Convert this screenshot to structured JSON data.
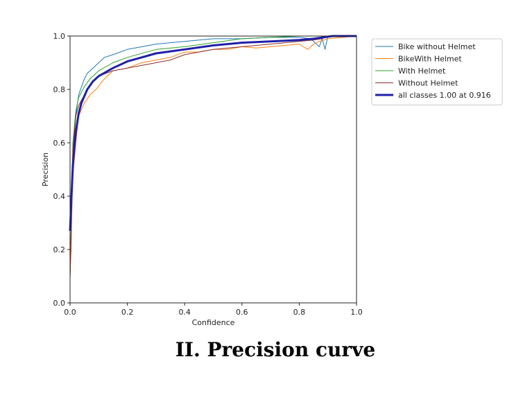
{
  "caption": "II. Precision curve",
  "chart_data": {
    "type": "line",
    "xlabel": "Confidence",
    "ylabel": "Precision",
    "xlim": [
      0.0,
      1.0
    ],
    "ylim": [
      0.0,
      1.0
    ],
    "xticks": [
      "0.0",
      "0.2",
      "0.4",
      "0.6",
      "0.8",
      "1.0"
    ],
    "yticks": [
      "0.0",
      "0.2",
      "0.4",
      "0.6",
      "0.8",
      "1.0"
    ],
    "grid": false,
    "legend_position": "outside-top-right",
    "series": [
      {
        "name": "Bike without Helmet",
        "color": "#1f77b4",
        "width": 1,
        "x": [
          0.0,
          0.005,
          0.01,
          0.02,
          0.03,
          0.05,
          0.06,
          0.08,
          0.1,
          0.12,
          0.15,
          0.2,
          0.25,
          0.3,
          0.4,
          0.5,
          0.6,
          0.7,
          0.8,
          0.84,
          0.86,
          0.87,
          0.88,
          0.89,
          0.9,
          0.92,
          1.0
        ],
        "y": [
          0.1,
          0.3,
          0.55,
          0.7,
          0.78,
          0.84,
          0.86,
          0.88,
          0.9,
          0.92,
          0.93,
          0.95,
          0.96,
          0.97,
          0.98,
          0.99,
          0.99,
          0.995,
          0.995,
          0.99,
          0.97,
          0.96,
          0.99,
          0.95,
          1.0,
          1.0,
          1.0
        ]
      },
      {
        "name": "BikeWith Helmet",
        "color": "#ff7f0e",
        "width": 1,
        "x": [
          0.0,
          0.004,
          0.008,
          0.02,
          0.03,
          0.05,
          0.07,
          0.09,
          0.12,
          0.15,
          0.2,
          0.25,
          0.3,
          0.35,
          0.4,
          0.45,
          0.5,
          0.55,
          0.6,
          0.65,
          0.7,
          0.75,
          0.8,
          0.83,
          0.85,
          0.87,
          0.9,
          1.0
        ],
        "y": [
          0.12,
          0.2,
          0.45,
          0.6,
          0.7,
          0.75,
          0.78,
          0.8,
          0.84,
          0.87,
          0.88,
          0.9,
          0.91,
          0.92,
          0.94,
          0.94,
          0.95,
          0.95,
          0.96,
          0.955,
          0.96,
          0.965,
          0.97,
          0.95,
          0.97,
          0.98,
          0.99,
          1.0
        ]
      },
      {
        "name": "With Helmet",
        "color": "#2ca02c",
        "width": 1,
        "x": [
          0.0,
          0.005,
          0.01,
          0.02,
          0.03,
          0.05,
          0.07,
          0.1,
          0.15,
          0.2,
          0.3,
          0.4,
          0.5,
          0.6,
          0.7,
          0.8,
          0.85,
          0.9,
          1.0
        ],
        "y": [
          0.1,
          0.35,
          0.6,
          0.72,
          0.77,
          0.81,
          0.84,
          0.87,
          0.9,
          0.92,
          0.95,
          0.96,
          0.975,
          0.99,
          0.995,
          1.0,
          1.0,
          1.0,
          1.0
        ]
      },
      {
        "name": "Without Helmet",
        "color": "#8c2d2d",
        "width": 1,
        "x": [
          0.0,
          0.005,
          0.01,
          0.02,
          0.03,
          0.05,
          0.07,
          0.1,
          0.15,
          0.2,
          0.25,
          0.3,
          0.35,
          0.4,
          0.5,
          0.6,
          0.7,
          0.8,
          0.85,
          0.88,
          0.9,
          1.0
        ],
        "y": [
          0.09,
          0.35,
          0.58,
          0.7,
          0.74,
          0.78,
          0.82,
          0.85,
          0.87,
          0.88,
          0.89,
          0.9,
          0.91,
          0.93,
          0.95,
          0.96,
          0.97,
          0.98,
          0.985,
          0.99,
          1.0,
          1.0
        ]
      },
      {
        "name": "all classes 1.00 at 0.916",
        "color": "#1f1fa8",
        "width": 3,
        "x": [
          0.0,
          0.005,
          0.01,
          0.02,
          0.03,
          0.04,
          0.06,
          0.08,
          0.1,
          0.15,
          0.2,
          0.25,
          0.3,
          0.4,
          0.5,
          0.6,
          0.7,
          0.8,
          0.85,
          0.916,
          1.0
        ],
        "y": [
          0.27,
          0.4,
          0.52,
          0.64,
          0.71,
          0.75,
          0.8,
          0.83,
          0.85,
          0.88,
          0.905,
          0.92,
          0.935,
          0.95,
          0.965,
          0.975,
          0.98,
          0.985,
          0.99,
          1.0,
          1.0
        ]
      }
    ]
  }
}
